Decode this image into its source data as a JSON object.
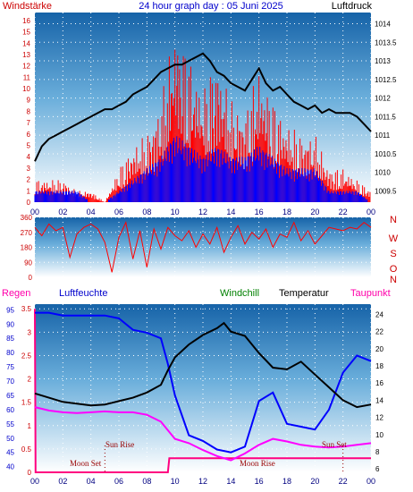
{
  "header": {
    "left": "Windstärke",
    "center": "24 hour graph day : 05 Juni 2025",
    "right": "Luftdruck"
  },
  "legend_bottom": {
    "regen": "Regen",
    "luftfeuchte": "Luftfeuchte",
    "windchill": "Windchill",
    "temperatur": "Temperatur",
    "taupunkt": "Taupunkt"
  },
  "direction_labels": [
    "N",
    "W",
    "S",
    "O",
    "N"
  ],
  "annotations": {
    "moon_set": "Moon Set",
    "sun_rise": "Sun Rise",
    "moon_rise": "Moon Rise",
    "sun_set": "Sun Set"
  },
  "colors": {
    "background_top": "#1a6fb5",
    "background_bottom": "#ffffff",
    "wind": "#ff0000",
    "gust": "#0000ff",
    "pressure": "#000000",
    "temperature": "#000000",
    "humidity": "#0000ff",
    "dewpoint": "#ff00ff",
    "windchill": "#008000",
    "rain": "#ff0080",
    "label_red": "#cc0000",
    "label_blue": "#0000cc"
  },
  "chart_data": [
    {
      "type": "line",
      "name": "wind_pressure",
      "x_ticks": [
        "00",
        "02",
        "04",
        "06",
        "08",
        "10",
        "12",
        "14",
        "16",
        "18",
        "20",
        "22",
        "00"
      ],
      "left_axis_ticks": [
        "0",
        "1",
        "2",
        "3",
        "4",
        "5",
        "6",
        "7",
        "8",
        "9",
        "10",
        "11",
        "12",
        "13",
        "14",
        "15",
        "16"
      ],
      "right_axis_ticks": [
        "1009.5",
        "1010",
        "1010.5",
        "1011",
        "1011.5",
        "1012",
        "1012.5",
        "1013",
        "1013.5",
        "1014"
      ],
      "ylim_left": [
        0,
        16.7
      ],
      "ylim_right": [
        1009.2,
        1014.3
      ],
      "series": [
        {
          "name": "Luftdruck",
          "axis": "right",
          "x": [
            0,
            0.5,
            1,
            1.5,
            2,
            2.5,
            3,
            3.5,
            4,
            4.5,
            5,
            5.5,
            6,
            6.5,
            7,
            7.5,
            8,
            8.5,
            9,
            9.5,
            10,
            10.5,
            11,
            11.5,
            12,
            12.5,
            13,
            13.5,
            14,
            14.5,
            15,
            15.5,
            16,
            16.5,
            17,
            17.5,
            18,
            18.5,
            19,
            19.5,
            20,
            20.5,
            21,
            21.5,
            22,
            22.5,
            23,
            23.5,
            24
          ],
          "values": [
            1010.3,
            1010.7,
            1010.9,
            1011.0,
            1011.1,
            1011.2,
            1011.3,
            1011.4,
            1011.5,
            1011.6,
            1011.7,
            1011.7,
            1011.8,
            1011.9,
            1012.1,
            1012.2,
            1012.3,
            1012.5,
            1012.7,
            1012.8,
            1012.9,
            1012.9,
            1013.0,
            1013.1,
            1013.2,
            1013.0,
            1012.7,
            1012.6,
            1012.4,
            1012.3,
            1012.2,
            1012.5,
            1012.8,
            1012.4,
            1012.2,
            1012.3,
            1012.1,
            1011.9,
            1011.8,
            1011.7,
            1011.8,
            1011.6,
            1011.7,
            1011.6,
            1011.6,
            1011.6,
            1011.5,
            1011.3,
            1011.1
          ]
        },
        {
          "name": "Windstärke mean",
          "axis": "left",
          "x": [
            0,
            1,
            2,
            3,
            4,
            5,
            6,
            7,
            8,
            9,
            10,
            11,
            12,
            13,
            14,
            15,
            16,
            17,
            18,
            19,
            20,
            21,
            22,
            23,
            24
          ],
          "values": [
            1,
            1,
            1,
            1,
            0,
            0,
            1,
            2,
            3,
            4,
            6,
            5,
            4,
            5,
            4,
            4,
            5,
            4,
            3,
            3,
            3,
            1,
            1,
            1,
            0
          ]
        },
        {
          "name": "Windstärke gust",
          "axis": "left",
          "x": [
            0,
            1,
            2,
            3,
            4,
            5,
            6,
            7,
            8,
            9,
            10,
            11,
            12,
            13,
            14,
            15,
            16,
            17,
            18,
            19,
            20,
            21,
            22,
            23,
            24
          ],
          "values": [
            2,
            2,
            2,
            1,
            1,
            0,
            3,
            5,
            6,
            9,
            16,
            13,
            10,
            13,
            9,
            8,
            12,
            9,
            7,
            6,
            6,
            3,
            3,
            2,
            1
          ]
        }
      ]
    },
    {
      "type": "scatter",
      "name": "wind_direction",
      "y_ticks": [
        "0",
        "90",
        "180",
        "270",
        "360"
      ],
      "ylim": [
        0,
        360
      ],
      "x": [
        0,
        0.5,
        1,
        1.5,
        2,
        2.5,
        3,
        3.5,
        4,
        4.5,
        5,
        5.5,
        6,
        6.5,
        7,
        7.5,
        8,
        8.5,
        9,
        9.5,
        10,
        10.5,
        11,
        11.5,
        12,
        12.5,
        13,
        13.5,
        14,
        14.5,
        15,
        15.5,
        16,
        16.5,
        17,
        17.5,
        18,
        18.5,
        19,
        19.5,
        20,
        20.5,
        21,
        21.5,
        22,
        22.5,
        23,
        23.5,
        24
      ],
      "values": [
        300,
        250,
        320,
        280,
        300,
        120,
        260,
        300,
        320,
        290,
        210,
        30,
        240,
        330,
        110,
        280,
        60,
        290,
        170,
        300,
        250,
        220,
        280,
        180,
        260,
        200,
        300,
        150,
        240,
        310,
        200,
        270,
        230,
        290,
        180,
        260,
        240,
        330,
        220,
        280,
        200,
        250,
        300,
        290,
        280,
        300,
        290,
        330,
        300
      ]
    },
    {
      "type": "line",
      "name": "temperature_humidity",
      "x_ticks": [
        "00",
        "02",
        "04",
        "06",
        "08",
        "10",
        "12",
        "14",
        "16",
        "18",
        "20",
        "22",
        "00"
      ],
      "left_axis_ticks": [
        "40",
        "45",
        "50",
        "55",
        "60",
        "65",
        "70",
        "75",
        "80",
        "85",
        "90",
        "95"
      ],
      "rain_axis_ticks": [
        "0",
        "0.5",
        "1",
        "1.5",
        "2",
        "2.5",
        "3",
        "3.5"
      ],
      "right_axis_ticks": [
        "6",
        "8",
        "10",
        "12",
        "14",
        "16",
        "18",
        "20",
        "22",
        "24"
      ],
      "ylim_humidity": [
        38,
        97
      ],
      "ylim_temperature": [
        5.6,
        25.2
      ],
      "series": [
        {
          "name": "Temperatur",
          "x": [
            0,
            1,
            2,
            3,
            4,
            5,
            6,
            7,
            8,
            9,
            9.5,
            10,
            11,
            12,
            13,
            13.5,
            14,
            15,
            16,
            17,
            18,
            19,
            20,
            21,
            22,
            23,
            24
          ],
          "values": [
            14.8,
            14.3,
            13.8,
            13.6,
            13.4,
            13.5,
            13.9,
            14.3,
            14.9,
            15.8,
            17.5,
            19.0,
            20.5,
            21.6,
            22.4,
            23.0,
            22.0,
            21.5,
            19.5,
            17.8,
            17.6,
            18.5,
            17.0,
            15.5,
            14.0,
            13.2,
            13.5
          ]
        },
        {
          "name": "Luftfeuchte",
          "x": [
            0,
            1,
            2,
            3,
            4,
            5,
            6,
            7,
            8,
            9,
            9.5,
            10,
            11,
            12,
            13,
            14,
            15,
            16,
            17,
            18,
            19,
            20,
            21,
            22,
            23,
            24
          ],
          "values": [
            94,
            94,
            93,
            93,
            93,
            93,
            92,
            88,
            87,
            85,
            76,
            65,
            51,
            49,
            46,
            45,
            47,
            63,
            66,
            55,
            54,
            53,
            60,
            73,
            79,
            77
          ]
        },
        {
          "name": "Taupunkt",
          "x": [
            0,
            1,
            2,
            3,
            4,
            5,
            6,
            7,
            8,
            9,
            9.5,
            10,
            11,
            12,
            13,
            14,
            15,
            16,
            17,
            18,
            19,
            20,
            21,
            22,
            23,
            24
          ],
          "values": [
            13.2,
            12.8,
            12.6,
            12.5,
            12.6,
            12.7,
            12.6,
            12.6,
            12.3,
            11.5,
            10.5,
            9.5,
            9.0,
            8.2,
            7.5,
            7.0,
            7.8,
            8.8,
            9.5,
            9.2,
            8.8,
            8.6,
            8.5,
            8.6,
            8.8,
            9.0
          ]
        },
        {
          "name": "Regen",
          "x": [
            0,
            0.05,
            9.5,
            9.6,
            24
          ],
          "values": [
            3.5,
            0,
            0,
            0.3,
            0.3
          ]
        }
      ]
    }
  ]
}
